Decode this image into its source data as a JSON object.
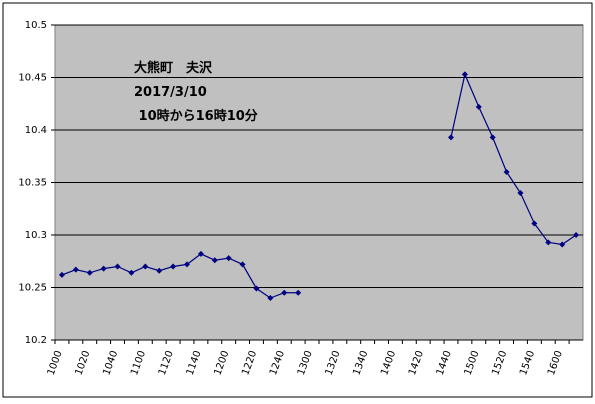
{
  "chart_data": {
    "type": "line",
    "annotations": [
      "大熊町　夫沢",
      "2017/3/10",
      " 10時から16時10分"
    ],
    "categories": [
      "1000",
      null,
      "1020",
      null,
      "1040",
      null,
      "1100",
      null,
      "1120",
      null,
      "1140",
      null,
      "1200",
      null,
      "1220",
      null,
      "1240",
      null,
      "1300",
      null,
      "1320",
      null,
      "1340",
      null,
      "1400",
      null,
      "1420",
      null,
      "1440",
      null,
      "1500",
      null,
      "1520",
      null,
      "1540",
      null,
      "1600",
      null
    ],
    "series": [
      {
        "color": "#000080",
        "values": [
          10.262,
          10.267,
          10.264,
          10.268,
          10.27,
          10.264,
          10.27,
          10.266,
          10.27,
          10.272,
          10.282,
          10.276,
          10.278,
          10.272,
          10.249,
          10.24,
          10.245,
          10.245,
          null,
          null,
          null,
          null,
          null,
          null,
          null,
          null,
          null,
          null,
          10.393,
          10.453,
          10.422,
          10.393,
          10.36,
          10.34,
          10.311,
          10.293,
          10.291,
          10.3
        ]
      }
    ],
    "ylim": [
      10.2,
      10.5
    ],
    "yticks": [
      10.2,
      10.25,
      10.3,
      10.35,
      10.4,
      10.45,
      10.5
    ],
    "grid": true,
    "plot_background": "#c0c0c0"
  }
}
